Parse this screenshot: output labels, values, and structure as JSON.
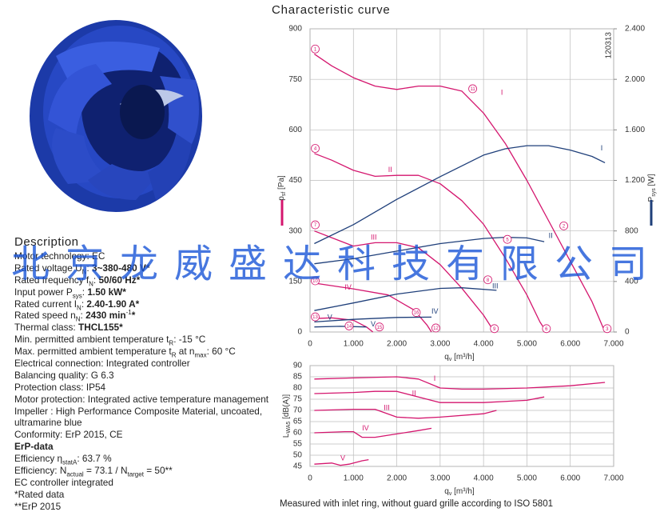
{
  "description": {
    "title": "Description",
    "lines": [
      [
        {
          "text": "Motor technology: EC"
        }
      ],
      [
        {
          "text": "Rated voltage U"
        },
        {
          "text": "N",
          "format": "sub"
        },
        {
          "text": ": "
        },
        {
          "text": "3~380-480 V*",
          "format": "bold"
        }
      ],
      [
        {
          "text": "Rated frequency f"
        },
        {
          "text": "N",
          "format": "sub"
        },
        {
          "text": ": "
        },
        {
          "text": "50/60 Hz*",
          "format": "bold"
        }
      ],
      [
        {
          "text": "Input power P"
        },
        {
          "text": "sys",
          "format": "sub"
        },
        {
          "text": ": "
        },
        {
          "text": "1.50 kW*",
          "format": "bold"
        }
      ],
      [
        {
          "text": "Rated current I"
        },
        {
          "text": "N",
          "format": "sub"
        },
        {
          "text": ": "
        },
        {
          "text": "2.40-1.90 A*",
          "format": "bold"
        }
      ],
      [
        {
          "text": "Rated speed n"
        },
        {
          "text": "N",
          "format": "sub"
        },
        {
          "text": ": "
        },
        {
          "text": "2430 min",
          "format": "bold"
        },
        {
          "text": "-1",
          "format": "sup"
        },
        {
          "text": "*",
          "format": "bold"
        }
      ],
      [
        {
          "text": "Thermal class: "
        },
        {
          "text": "THCL155*",
          "format": "bold"
        }
      ],
      [
        {
          "text": "Min. permitted ambient temperature t"
        },
        {
          "text": "R",
          "format": "sub"
        },
        {
          "text": ": -15 °C"
        }
      ],
      [
        {
          "text": "Max. permitted ambient temperature t"
        },
        {
          "text": "R",
          "format": "sub"
        },
        {
          "text": " at n"
        },
        {
          "text": "max",
          "format": "sub"
        },
        {
          "text": ": 60 °C"
        }
      ],
      [
        {
          "text": "Electrical connection: Integrated controller"
        }
      ],
      [
        {
          "text": "Balancing quality: G 6.3"
        }
      ],
      [
        {
          "text": "Protection class: IP54"
        }
      ],
      [
        {
          "text": "Motor protection: Integrated active temperature management"
        }
      ],
      [
        {
          "text": "Impeller : High Performance Composite Material, uncoated,"
        }
      ],
      [
        {
          "text": "ultramarine blue"
        }
      ],
      [
        {
          "text": "Conformity: ErP 2015, CE"
        }
      ],
      [
        {
          "text": "ErP-data",
          "format": "bold"
        }
      ],
      [
        {
          "text": "Efficiency η"
        },
        {
          "text": "statA",
          "format": "sub"
        },
        {
          "text": ": 63.7 %"
        }
      ],
      [
        {
          "text": "Efficiency: N"
        },
        {
          "text": "actual",
          "format": "sub"
        },
        {
          "text": " = 73.1 / N"
        },
        {
          "text": "target",
          "format": "sub"
        },
        {
          "text": " = 50**"
        }
      ],
      [
        {
          "text": "EC controller integrated"
        }
      ],
      [
        {
          "text": "*Rated data"
        }
      ],
      [
        {
          "text": "**ErP 2015"
        }
      ]
    ]
  },
  "watermark": "北京龙威盛达科技有限公司",
  "caption": "Measured with inlet ring, without guard grille according to ISO 5801",
  "chart_data": [
    {
      "type": "line",
      "title": "Characteristic curve",
      "code": "120313",
      "xlabel": [
        {
          "text": "q"
        },
        {
          "text": "v",
          "format": "sub"
        },
        {
          "text": " [m³/h]"
        }
      ],
      "ylabel": [
        {
          "text": "p"
        },
        {
          "text": "sf",
          "format": "sub"
        },
        {
          "text": " [Pa]"
        }
      ],
      "y2label": [
        {
          "text": "P"
        },
        {
          "text": "sys",
          "format": "sub"
        },
        {
          "text": " [W]"
        }
      ],
      "y_color": "#d4166e",
      "y2_color": "#1f3f7a",
      "xlim": [
        0,
        7000
      ],
      "xticks": [
        0,
        {
          "value": 1000,
          "label": "1.000"
        },
        {
          "value": 2000,
          "label": "2.000"
        },
        {
          "value": 3000,
          "label": "3.000"
        },
        {
          "value": 4000,
          "label": "4.000"
        },
        {
          "value": 5000,
          "label": "5.000"
        },
        {
          "value": 6000,
          "label": "6.000"
        },
        {
          "value": 7000,
          "label": "7.000"
        }
      ],
      "ylim": [
        0,
        900
      ],
      "yticks": [
        0,
        150,
        300,
        450,
        600,
        750,
        900
      ],
      "y2lim": [
        0,
        2400
      ],
      "y2ticks": [
        0,
        400,
        800,
        {
          "value": 1200,
          "label": "1.200"
        },
        {
          "value": 1600,
          "label": "1.600"
        },
        {
          "value": 2000,
          "label": "2.000"
        },
        {
          "value": 2400,
          "label": "2.400"
        }
      ],
      "grid": true,
      "series": [
        {
          "color": "#d4166e",
          "axis": "y",
          "x": [
            100,
            500,
            1000,
            1500,
            2000,
            2500,
            3000,
            3500,
            4000,
            4500,
            5000,
            5500,
            6000,
            6500,
            6800
          ],
          "values": [
            825,
            790,
            755,
            730,
            720,
            730,
            730,
            715,
            650,
            560,
            450,
            330,
            210,
            90,
            0
          ]
        },
        {
          "color": "#d4166e",
          "axis": "y",
          "x": [
            100,
            500,
            1000,
            1500,
            2000,
            2500,
            3000,
            3500,
            4000,
            4500,
            5000,
            5300,
            5450
          ],
          "values": [
            530,
            510,
            480,
            462,
            465,
            465,
            440,
            390,
            320,
            220,
            110,
            30,
            0
          ]
        },
        {
          "color": "#d4166e",
          "axis": "y",
          "x": [
            100,
            500,
            1000,
            1500,
            2000,
            2500,
            3000,
            3500,
            4000,
            4250
          ],
          "values": [
            300,
            280,
            255,
            265,
            265,
            250,
            200,
            130,
            50,
            0
          ]
        },
        {
          "color": "#d4166e",
          "axis": "y",
          "x": [
            100,
            1000,
            1800,
            2400,
            2700,
            2800
          ],
          "values": [
            145,
            128,
            110,
            65,
            20,
            0
          ]
        },
        {
          "color": "#d4166e",
          "axis": "y",
          "x": [
            100,
            500,
            1000,
            1300,
            1450
          ],
          "values": [
            40,
            42,
            35,
            15,
            0
          ]
        },
        {
          "color": "#1f3f7a",
          "axis": "y2",
          "x": [
            100,
            1000,
            2000,
            3000,
            4000,
            4500,
            5000,
            5500,
            6000,
            6500,
            6800
          ],
          "values": [
            700,
            850,
            1050,
            1230,
            1400,
            1450,
            1475,
            1475,
            1440,
            1390,
            1340
          ]
        },
        {
          "color": "#1f3f7a",
          "axis": "y2",
          "x": [
            100,
            1000,
            2000,
            3000,
            4000,
            4500,
            5000,
            5400
          ],
          "values": [
            540,
            580,
            640,
            700,
            740,
            750,
            745,
            715
          ]
        },
        {
          "color": "#1f3f7a",
          "axis": "y2",
          "x": [
            100,
            1000,
            2000,
            3000,
            3500,
            4300
          ],
          "values": [
            170,
            230,
            300,
            345,
            350,
            330
          ]
        },
        {
          "color": "#1f3f7a",
          "axis": "y2",
          "x": [
            100,
            1000,
            2000,
            2800
          ],
          "values": [
            80,
            100,
            115,
            118
          ]
        },
        {
          "color": "#1f3f7a",
          "axis": "y2",
          "x": [
            100,
            700,
            1300
          ],
          "values": [
            40,
            45,
            40
          ]
        }
      ],
      "annotations": [
        {
          "text": "I",
          "x": 4400,
          "y": 710,
          "color": "#d4166e"
        },
        {
          "text": "II",
          "x": 1800,
          "y": 480,
          "color": "#d4166e"
        },
        {
          "text": "III",
          "x": 1400,
          "y": 280,
          "color": "#d4166e"
        },
        {
          "text": "IV",
          "x": 800,
          "y": 132,
          "color": "#d4166e"
        },
        {
          "text": "V",
          "x": 1400,
          "y": 22,
          "color": "#1f3f7a"
        },
        {
          "text": "I",
          "x": 6700,
          "y": 545,
          "color": "#1f3f7a"
        },
        {
          "text": "II",
          "x": 5500,
          "y": 285,
          "color": "#1f3f7a"
        },
        {
          "text": "III",
          "x": 4200,
          "y": 135,
          "color": "#1f3f7a"
        },
        {
          "text": "IV",
          "x": 2800,
          "y": 60,
          "color": "#1f3f7a"
        },
        {
          "text": "V",
          "x": 400,
          "y": 42,
          "color": "#1f3f7a"
        }
      ],
      "markers": [
        {
          "label": "1",
          "x": 120,
          "y": 840
        },
        {
          "label": "2",
          "x": 5850,
          "y": 315
        },
        {
          "label": "3",
          "x": 6850,
          "y": 10
        },
        {
          "label": "4",
          "x": 120,
          "y": 545
        },
        {
          "label": "5",
          "x": 4550,
          "y": 275
        },
        {
          "label": "6",
          "x": 5450,
          "y": 10
        },
        {
          "label": "7",
          "x": 120,
          "y": 318
        },
        {
          "label": "8",
          "x": 4100,
          "y": 155
        },
        {
          "label": "9",
          "x": 4250,
          "y": 10
        },
        {
          "label": "10",
          "x": 120,
          "y": 152
        },
        {
          "label": "11",
          "x": 3750,
          "y": 722
        },
        {
          "label": "12",
          "x": 2900,
          "y": 12
        },
        {
          "label": "13",
          "x": 120,
          "y": 45
        },
        {
          "label": "14",
          "x": 900,
          "y": 18
        },
        {
          "label": "15",
          "x": 1600,
          "y": 15
        },
        {
          "label": "16",
          "x": 2450,
          "y": 58
        }
      ]
    },
    {
      "type": "line",
      "xlabel": [
        {
          "text": "q"
        },
        {
          "text": "v",
          "format": "sub"
        },
        {
          "text": " [m³/h]"
        }
      ],
      "ylabel": [
        {
          "text": "L"
        },
        {
          "text": "WA5",
          "format": "sub"
        },
        {
          "text": " [dB(A)]"
        }
      ],
      "xlim": [
        0,
        7000
      ],
      "xticks": [
        0,
        {
          "value": 1000,
          "label": "1.000"
        },
        {
          "value": 2000,
          "label": "2.000"
        },
        {
          "value": 3000,
          "label": "3.000"
        },
        {
          "value": 4000,
          "label": "4.000"
        },
        {
          "value": 5000,
          "label": "5.000"
        },
        {
          "value": 6000,
          "label": "6.000"
        },
        {
          "value": 7000,
          "label": "7.000"
        }
      ],
      "ylim": [
        45,
        90
      ],
      "yticks": [
        45,
        50,
        55,
        60,
        65,
        70,
        75,
        80,
        85,
        90
      ],
      "grid": true,
      "series": [
        {
          "color": "#d4166e",
          "x": [
            100,
            1000,
            2000,
            2500,
            3000,
            3500,
            4000,
            5000,
            6000,
            6800
          ],
          "values": [
            84,
            84.5,
            85,
            84,
            80,
            79.5,
            79.5,
            80,
            81,
            82.5
          ]
        },
        {
          "color": "#d4166e",
          "x": [
            100,
            1000,
            1500,
            2000,
            2500,
            3000,
            4000,
            5000,
            5400
          ],
          "values": [
            77.5,
            78,
            78.5,
            78.5,
            76,
            73.5,
            73.5,
            74.5,
            76
          ]
        },
        {
          "color": "#d4166e",
          "x": [
            100,
            1000,
            1500,
            2000,
            2500,
            3000,
            4000,
            4300
          ],
          "values": [
            70,
            70.5,
            70.5,
            67,
            66.5,
            67,
            68.5,
            70
          ]
        },
        {
          "color": "#d4166e",
          "x": [
            100,
            800,
            1000,
            1200,
            1500,
            2000,
            2500,
            2800
          ],
          "values": [
            60,
            60.5,
            60.5,
            58,
            58,
            59.5,
            61,
            62
          ]
        },
        {
          "color": "#d4166e",
          "x": [
            100,
            500,
            700,
            900,
            1200,
            1350
          ],
          "values": [
            46,
            46.5,
            45.5,
            46,
            47.5,
            48
          ]
        }
      ],
      "annotations": [
        {
          "text": "I",
          "x": 2850,
          "y": 84,
          "color": "#d4166e"
        },
        {
          "text": "II",
          "x": 2350,
          "y": 77.5,
          "color": "#d4166e"
        },
        {
          "text": "III",
          "x": 1700,
          "y": 71,
          "color": "#d4166e"
        },
        {
          "text": "IV",
          "x": 1200,
          "y": 62,
          "color": "#d4166e"
        },
        {
          "text": "V",
          "x": 700,
          "y": 48.5,
          "color": "#d4166e"
        }
      ]
    }
  ]
}
